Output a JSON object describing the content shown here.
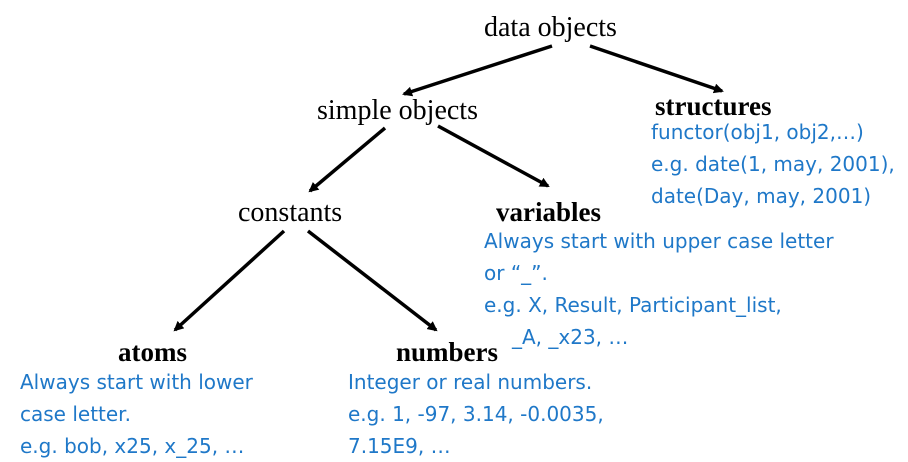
{
  "nodes": {
    "root": "data objects",
    "simple_objects": "simple objects",
    "structures": "structures",
    "constants": "constants",
    "variables": "variables",
    "atoms": "atoms",
    "numbers": "numbers"
  },
  "descriptions": {
    "structures": [
      "functor(obj1, obj2,…)",
      "e.g. date(1, may, 2001),",
      "date(Day, may, 2001)"
    ],
    "variables": [
      "Always start with upper case letter",
      "or “_”.",
      "e.g. X, Result, Participant_list,",
      "_A, _x23, …"
    ],
    "atoms": [
      "Always start with lower",
      "case letter.",
      "e.g. bob, x25, x_25, …"
    ],
    "numbers": [
      "Integer or real numbers.",
      "e.g. 1, -97, 3.14, -0.0035,",
      "7.15E9, …"
    ]
  },
  "colors": {
    "text": "#000000",
    "description": "#1f78c8",
    "arrow": "#000000"
  }
}
